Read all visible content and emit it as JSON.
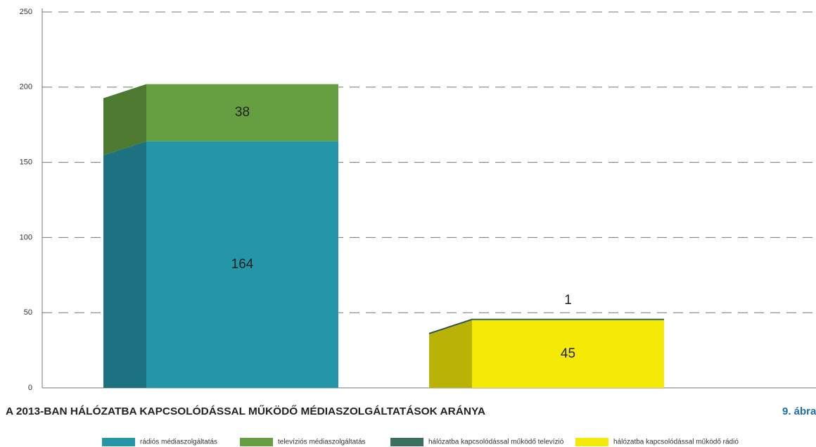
{
  "chart_data": {
    "type": "bar",
    "title": "A 2013-BAN HÁLÓZATBA KAPCSOLÓDÁSSAL MŰKÖDŐ MÉDIASZOLGÁLTATÁSOK ARÁNYA",
    "figure_label": "9. ábra",
    "categories": [
      null,
      null
    ],
    "series": [
      {
        "name": "rádiós médiaszolgáltatás",
        "color": "#2596a8",
        "values": [
          164,
          null
        ]
      },
      {
        "name": "televíziós médiaszolgáltatás",
        "color": "#659f41",
        "values": [
          38,
          null
        ]
      },
      {
        "name": "hálózatba kapcsolódással működő rádió",
        "color": "#f5ea06",
        "values": [
          null,
          45
        ]
      },
      {
        "name": "hálózatba kapcsolódással működő televízió",
        "color": "#3a7060",
        "values": [
          null,
          1
        ]
      }
    ],
    "stacked": true,
    "ylim": [
      0,
      250
    ],
    "yticks": [
      0,
      50,
      100,
      150,
      200,
      250
    ],
    "grid": true
  }
}
